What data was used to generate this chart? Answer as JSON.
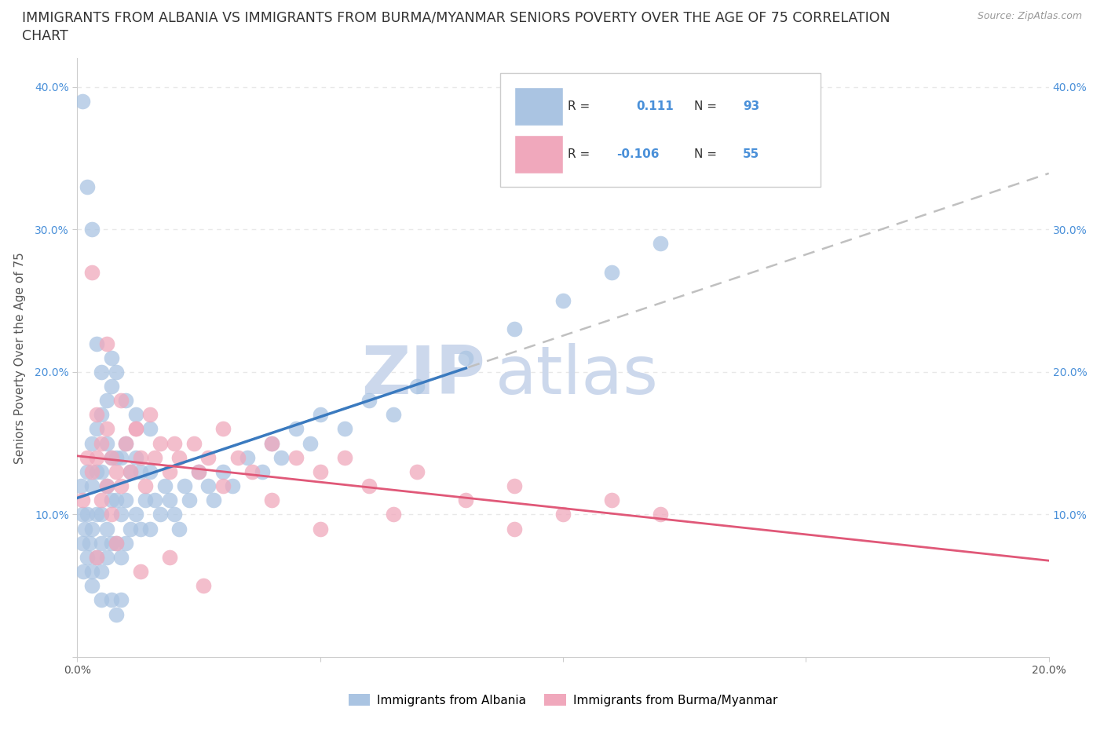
{
  "title_line1": "IMMIGRANTS FROM ALBANIA VS IMMIGRANTS FROM BURMA/MYANMAR SENIORS POVERTY OVER THE AGE OF 75 CORRELATION",
  "title_line2": "CHART",
  "source": "Source: ZipAtlas.com",
  "ylabel": "Seniors Poverty Over the Age of 75",
  "xlim": [
    0.0,
    0.2
  ],
  "ylim": [
    0.0,
    0.42
  ],
  "x_tick_positions": [
    0.0,
    0.05,
    0.1,
    0.15,
    0.2
  ],
  "x_tick_labels": [
    "0.0%",
    "",
    "",
    "",
    "20.0%"
  ],
  "y_tick_positions": [
    0.0,
    0.1,
    0.2,
    0.3,
    0.4
  ],
  "y_tick_labels": [
    "",
    "10.0%",
    "20.0%",
    "30.0%",
    "40.0%"
  ],
  "albania_color": "#aac4e2",
  "burma_color": "#f0a8bc",
  "albania_line_color": "#3a7abf",
  "burma_line_color": "#e05878",
  "trend_dash_color": "#c0c0c0",
  "watermark_color": "#ccd8ec",
  "tick_color": "#4a90d9",
  "grid_color": "#e8e8e8",
  "background_color": "#ffffff",
  "title_fontsize": 12.5,
  "axis_label_fontsize": 11,
  "tick_fontsize": 10,
  "legend_fontsize": 11,
  "albania_R": "0.111",
  "albania_N": "93",
  "burma_R": "-0.106",
  "burma_N": "55",
  "albania_x": [
    0.0008,
    0.001,
    0.001,
    0.0012,
    0.0015,
    0.002,
    0.002,
    0.002,
    0.0025,
    0.003,
    0.003,
    0.003,
    0.003,
    0.004,
    0.004,
    0.004,
    0.004,
    0.005,
    0.005,
    0.005,
    0.005,
    0.005,
    0.006,
    0.006,
    0.006,
    0.006,
    0.007,
    0.007,
    0.007,
    0.007,
    0.008,
    0.008,
    0.008,
    0.009,
    0.009,
    0.009,
    0.01,
    0.01,
    0.01,
    0.011,
    0.011,
    0.012,
    0.012,
    0.013,
    0.013,
    0.014,
    0.015,
    0.015,
    0.016,
    0.017,
    0.018,
    0.019,
    0.02,
    0.021,
    0.022,
    0.023,
    0.025,
    0.027,
    0.028,
    0.03,
    0.032,
    0.035,
    0.038,
    0.04,
    0.042,
    0.045,
    0.048,
    0.05,
    0.055,
    0.06,
    0.065,
    0.07,
    0.08,
    0.09,
    0.1,
    0.11,
    0.12,
    0.001,
    0.002,
    0.003,
    0.004,
    0.005,
    0.006,
    0.007,
    0.008,
    0.01,
    0.012,
    0.015,
    0.003,
    0.005,
    0.007,
    0.008,
    0.009
  ],
  "albania_y": [
    0.12,
    0.08,
    0.1,
    0.06,
    0.09,
    0.07,
    0.1,
    0.13,
    0.08,
    0.06,
    0.09,
    0.12,
    0.15,
    0.07,
    0.1,
    0.13,
    0.16,
    0.06,
    0.08,
    0.1,
    0.13,
    0.17,
    0.07,
    0.09,
    0.12,
    0.15,
    0.08,
    0.11,
    0.14,
    0.19,
    0.08,
    0.11,
    0.14,
    0.07,
    0.1,
    0.14,
    0.08,
    0.11,
    0.15,
    0.09,
    0.13,
    0.1,
    0.14,
    0.09,
    0.13,
    0.11,
    0.09,
    0.13,
    0.11,
    0.1,
    0.12,
    0.11,
    0.1,
    0.09,
    0.12,
    0.11,
    0.13,
    0.12,
    0.11,
    0.13,
    0.12,
    0.14,
    0.13,
    0.15,
    0.14,
    0.16,
    0.15,
    0.17,
    0.16,
    0.18,
    0.17,
    0.19,
    0.21,
    0.23,
    0.25,
    0.27,
    0.29,
    0.39,
    0.33,
    0.3,
    0.22,
    0.2,
    0.18,
    0.21,
    0.2,
    0.18,
    0.17,
    0.16,
    0.05,
    0.04,
    0.04,
    0.03,
    0.04
  ],
  "burma_x": [
    0.001,
    0.002,
    0.003,
    0.004,
    0.004,
    0.005,
    0.005,
    0.006,
    0.006,
    0.007,
    0.007,
    0.008,
    0.009,
    0.01,
    0.011,
    0.012,
    0.013,
    0.014,
    0.015,
    0.017,
    0.019,
    0.021,
    0.024,
    0.027,
    0.03,
    0.033,
    0.036,
    0.04,
    0.045,
    0.05,
    0.055,
    0.06,
    0.07,
    0.08,
    0.09,
    0.1,
    0.11,
    0.12,
    0.003,
    0.006,
    0.009,
    0.012,
    0.016,
    0.02,
    0.025,
    0.03,
    0.04,
    0.05,
    0.065,
    0.09,
    0.004,
    0.008,
    0.013,
    0.019,
    0.026
  ],
  "burma_y": [
    0.11,
    0.14,
    0.13,
    0.17,
    0.14,
    0.11,
    0.15,
    0.12,
    0.16,
    0.14,
    0.1,
    0.13,
    0.12,
    0.15,
    0.13,
    0.16,
    0.14,
    0.12,
    0.17,
    0.15,
    0.13,
    0.14,
    0.15,
    0.14,
    0.16,
    0.14,
    0.13,
    0.15,
    0.14,
    0.13,
    0.14,
    0.12,
    0.13,
    0.11,
    0.12,
    0.1,
    0.11,
    0.1,
    0.27,
    0.22,
    0.18,
    0.16,
    0.14,
    0.15,
    0.13,
    0.12,
    0.11,
    0.09,
    0.1,
    0.09,
    0.07,
    0.08,
    0.06,
    0.07,
    0.05
  ]
}
